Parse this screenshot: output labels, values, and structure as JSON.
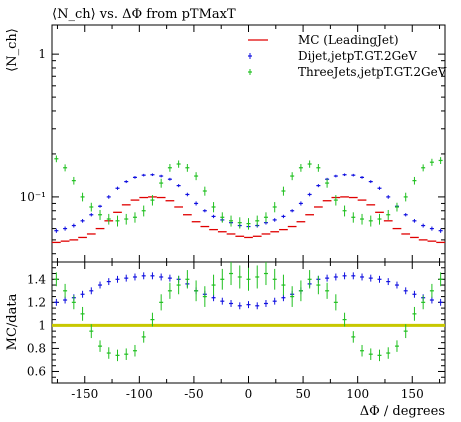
{
  "chart_data": [
    {
      "type": "scatter",
      "panel": "main",
      "title": "⟨N_ch⟩ vs. ΔΦ from pTMaxT",
      "ylabel": "⟨N_ch⟩",
      "xlim": [
        -180,
        180
      ],
      "ylim": [
        0.035,
        1.6
      ],
      "yscale": "log",
      "yticks": [
        {
          "v": 1,
          "label": "1"
        },
        {
          "v": 0.1,
          "label": "10⁻¹"
        }
      ],
      "legend_position": "top-right",
      "series": [
        {
          "name": "MC (LeadingJet)",
          "color": "#e00000",
          "style": "steps",
          "x": [
            -176,
            -168,
            -160,
            -152,
            -144,
            -136,
            -128,
            -120,
            -112,
            -104,
            -96,
            -88,
            -80,
            -72,
            -64,
            -56,
            -48,
            -40,
            -32,
            -24,
            -16,
            -8,
            0,
            8,
            16,
            24,
            32,
            40,
            48,
            56,
            64,
            72,
            80,
            88,
            96,
            104,
            112,
            120,
            128,
            136,
            144,
            152,
            160,
            168,
            176
          ],
          "y": [
            0.048,
            0.049,
            0.05,
            0.052,
            0.055,
            0.06,
            0.068,
            0.078,
            0.088,
            0.095,
            0.099,
            0.1,
            0.099,
            0.094,
            0.085,
            0.075,
            0.067,
            0.062,
            0.059,
            0.057,
            0.055,
            0.053,
            0.052,
            0.053,
            0.055,
            0.057,
            0.059,
            0.062,
            0.067,
            0.075,
            0.085,
            0.094,
            0.099,
            0.1,
            0.099,
            0.095,
            0.088,
            0.078,
            0.068,
            0.06,
            0.055,
            0.052,
            0.05,
            0.049,
            0.048
          ]
        },
        {
          "name": "Dijet,jetpT.GT.2GeV",
          "color": "#1010e0",
          "style": "points",
          "x": [
            -176,
            -168,
            -160,
            -152,
            -144,
            -136,
            -128,
            -120,
            -112,
            -104,
            -96,
            -88,
            -80,
            -72,
            -64,
            -56,
            -48,
            -40,
            -32,
            -24,
            -16,
            -8,
            0,
            8,
            16,
            24,
            32,
            40,
            48,
            56,
            64,
            72,
            80,
            88,
            96,
            104,
            112,
            120,
            128,
            136,
            144,
            152,
            160,
            168,
            176
          ],
          "y": [
            0.058,
            0.06,
            0.063,
            0.068,
            0.075,
            0.086,
            0.1,
            0.115,
            0.128,
            0.137,
            0.142,
            0.143,
            0.14,
            0.133,
            0.12,
            0.104,
            0.09,
            0.08,
            0.073,
            0.069,
            0.066,
            0.063,
            0.062,
            0.063,
            0.066,
            0.069,
            0.073,
            0.08,
            0.09,
            0.104,
            0.12,
            0.133,
            0.14,
            0.143,
            0.142,
            0.137,
            0.128,
            0.115,
            0.1,
            0.086,
            0.075,
            0.068,
            0.063,
            0.06,
            0.058
          ],
          "err": [
            0.002,
            0.002,
            0.002,
            0.002,
            0.002,
            0.002,
            0.003,
            0.003,
            0.003,
            0.003,
            0.003,
            0.003,
            0.003,
            0.003,
            0.003,
            0.003,
            0.003,
            0.002,
            0.002,
            0.002,
            0.002,
            0.002,
            0.002,
            0.002,
            0.002,
            0.002,
            0.002,
            0.002,
            0.003,
            0.003,
            0.003,
            0.003,
            0.003,
            0.003,
            0.003,
            0.003,
            0.003,
            0.003,
            0.003,
            0.002,
            0.002,
            0.002,
            0.002,
            0.002,
            0.002
          ]
        },
        {
          "name": "ThreeJets,jetpT.GT.2GeV",
          "color": "#20c020",
          "style": "points",
          "x": [
            -176,
            -168,
            -160,
            -152,
            -144,
            -136,
            -128,
            -120,
            -112,
            -104,
            -96,
            -88,
            -80,
            -72,
            -64,
            -56,
            -48,
            -40,
            -32,
            -24,
            -16,
            -8,
            0,
            8,
            16,
            24,
            32,
            40,
            48,
            56,
            64,
            72,
            80,
            88,
            96,
            104,
            112,
            120,
            128,
            136,
            144,
            152,
            160,
            168,
            176
          ],
          "y": [
            0.185,
            0.16,
            0.13,
            0.1,
            0.085,
            0.075,
            0.07,
            0.068,
            0.07,
            0.072,
            0.08,
            0.095,
            0.125,
            0.16,
            0.17,
            0.16,
            0.14,
            0.11,
            0.085,
            0.072,
            0.068,
            0.066,
            0.065,
            0.068,
            0.072,
            0.085,
            0.11,
            0.14,
            0.16,
            0.17,
            0.16,
            0.125,
            0.095,
            0.08,
            0.072,
            0.07,
            0.068,
            0.07,
            0.075,
            0.085,
            0.1,
            0.13,
            0.16,
            0.175,
            0.18
          ],
          "err": [
            0.01,
            0.009,
            0.008,
            0.007,
            0.006,
            0.006,
            0.006,
            0.006,
            0.006,
            0.006,
            0.007,
            0.008,
            0.009,
            0.01,
            0.01,
            0.01,
            0.009,
            0.008,
            0.007,
            0.006,
            0.006,
            0.006,
            0.006,
            0.006,
            0.006,
            0.007,
            0.008,
            0.009,
            0.01,
            0.01,
            0.01,
            0.009,
            0.008,
            0.007,
            0.006,
            0.006,
            0.006,
            0.006,
            0.006,
            0.006,
            0.007,
            0.008,
            0.009,
            0.01,
            0.01
          ]
        }
      ]
    },
    {
      "type": "scatter",
      "panel": "ratio",
      "xlabel": "ΔΦ / degrees",
      "ylabel": "MC/data",
      "xlim": [
        -180,
        180
      ],
      "ylim": [
        0.5,
        1.55
      ],
      "xticks": [
        -150,
        -100,
        -50,
        0,
        50,
        100,
        150
      ],
      "yticks": [
        0.6,
        0.8,
        1,
        1.2,
        1.4
      ],
      "reference_line": {
        "y": 1,
        "color": "#c8c800"
      },
      "series": [
        {
          "name": "Dijet,jetpT.GT.2GeV",
          "color": "#1010e0",
          "x": [
            -176,
            -168,
            -160,
            -152,
            -144,
            -136,
            -128,
            -120,
            -112,
            -104,
            -96,
            -88,
            -80,
            -72,
            -64,
            -56,
            -48,
            -40,
            -32,
            -24,
            -16,
            -8,
            0,
            8,
            16,
            24,
            32,
            40,
            48,
            56,
            64,
            72,
            80,
            88,
            96,
            104,
            112,
            120,
            128,
            136,
            144,
            152,
            160,
            168,
            176
          ],
          "y": [
            1.2,
            1.22,
            1.24,
            1.27,
            1.3,
            1.35,
            1.38,
            1.4,
            1.41,
            1.42,
            1.43,
            1.43,
            1.42,
            1.41,
            1.4,
            1.36,
            1.3,
            1.27,
            1.24,
            1.21,
            1.19,
            1.17,
            1.18,
            1.17,
            1.19,
            1.21,
            1.24,
            1.27,
            1.3,
            1.36,
            1.4,
            1.41,
            1.42,
            1.43,
            1.43,
            1.42,
            1.41,
            1.4,
            1.38,
            1.35,
            1.3,
            1.27,
            1.24,
            1.22,
            1.2
          ],
          "err": [
            0.03,
            0.03,
            0.03,
            0.03,
            0.03,
            0.03,
            0.03,
            0.03,
            0.03,
            0.03,
            0.03,
            0.03,
            0.03,
            0.03,
            0.03,
            0.03,
            0.03,
            0.03,
            0.03,
            0.03,
            0.03,
            0.03,
            0.03,
            0.03,
            0.03,
            0.03,
            0.03,
            0.03,
            0.03,
            0.03,
            0.03,
            0.03,
            0.03,
            0.03,
            0.03,
            0.03,
            0.03,
            0.03,
            0.03,
            0.03,
            0.03,
            0.03,
            0.03,
            0.03,
            0.03
          ]
        },
        {
          "name": "ThreeJets,jetpT.GT.2GeV",
          "color": "#20c020",
          "x": [
            -176,
            -168,
            -160,
            -152,
            -144,
            -136,
            -128,
            -120,
            -112,
            -104,
            -96,
            -88,
            -80,
            -72,
            -64,
            -56,
            -48,
            -40,
            -32,
            -24,
            -16,
            -8,
            0,
            8,
            16,
            24,
            32,
            40,
            48,
            56,
            64,
            72,
            80,
            88,
            96,
            104,
            112,
            120,
            128,
            136,
            144,
            152,
            160,
            168,
            176
          ],
          "y": [
            1.4,
            1.3,
            1.2,
            1.1,
            0.95,
            0.82,
            0.76,
            0.74,
            0.75,
            0.78,
            0.9,
            1.05,
            1.2,
            1.3,
            1.35,
            1.4,
            1.3,
            1.25,
            1.35,
            1.4,
            1.45,
            1.42,
            1.4,
            1.42,
            1.45,
            1.4,
            1.35,
            1.25,
            1.3,
            1.4,
            1.35,
            1.3,
            1.2,
            1.05,
            0.9,
            0.78,
            0.75,
            0.74,
            0.76,
            0.82,
            0.95,
            1.1,
            1.2,
            1.3,
            1.4
          ],
          "err": [
            0.06,
            0.06,
            0.06,
            0.06,
            0.06,
            0.05,
            0.05,
            0.05,
            0.05,
            0.05,
            0.05,
            0.06,
            0.07,
            0.07,
            0.08,
            0.08,
            0.09,
            0.09,
            0.09,
            0.09,
            0.1,
            0.1,
            0.1,
            0.1,
            0.1,
            0.09,
            0.09,
            0.09,
            0.09,
            0.08,
            0.08,
            0.07,
            0.07,
            0.06,
            0.05,
            0.05,
            0.05,
            0.05,
            0.05,
            0.05,
            0.06,
            0.06,
            0.06,
            0.06,
            0.06
          ]
        }
      ]
    }
  ]
}
